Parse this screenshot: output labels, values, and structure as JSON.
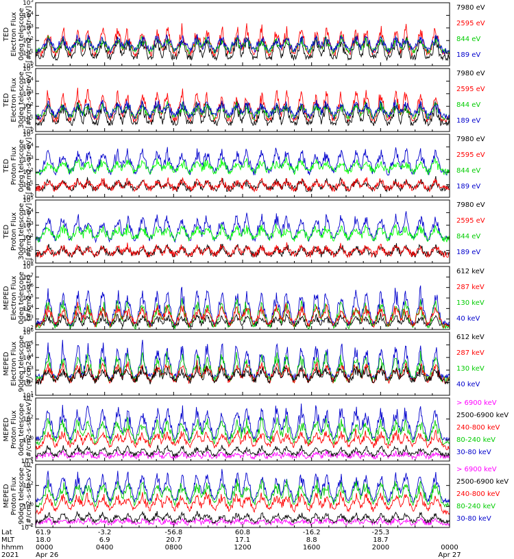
{
  "chart_data": [
    {
      "type": "line",
      "ylabel": [
        "TED",
        "Electron Flux",
        "0deg telescope",
        "[#/cm2-s-str-eV]"
      ],
      "yscale": "log",
      "ylim": [
        1,
        100000
      ],
      "ytick_labels": [
        "10^0",
        "10^1",
        "10^2",
        "10^3",
        "10^4",
        "10^5"
      ],
      "series": [
        {
          "name": "7980 eV",
          "color": "#000000",
          "base": 5,
          "peak": 300
        },
        {
          "name": "2595 eV",
          "color": "#ff0000",
          "base": 10,
          "peak": 2000
        },
        {
          "name": "844 eV",
          "color": "#00cc00",
          "base": 15,
          "peak": 200
        },
        {
          "name": "189 eV",
          "color": "#0000cc",
          "base": 15,
          "peak": 300
        }
      ]
    },
    {
      "type": "line",
      "ylabel": [
        "TED",
        "Electron Flux",
        "30deg telescope",
        "[#/cm2-s-str-eV]"
      ],
      "yscale": "log",
      "ylim": [
        1,
        100000
      ],
      "ytick_labels": [
        "10^0",
        "10^1",
        "10^2",
        "10^3",
        "10^4",
        "10^5"
      ],
      "series": [
        {
          "name": "7980 eV",
          "color": "#000000",
          "base": 5,
          "peak": 300
        },
        {
          "name": "2595 eV",
          "color": "#ff0000",
          "base": 10,
          "peak": 3000
        },
        {
          "name": "844 eV",
          "color": "#00cc00",
          "base": 15,
          "peak": 200
        },
        {
          "name": "189 eV",
          "color": "#0000cc",
          "base": 15,
          "peak": 300
        }
      ]
    },
    {
      "type": "line",
      "ylabel": [
        "TED",
        "Proton Flux",
        "0deg telescope",
        "[#/cm2-s-str-eV]"
      ],
      "yscale": "log",
      "ylim": [
        1,
        100000
      ],
      "ytick_labels": [
        "10^0",
        "10^1",
        "10^2",
        "10^3",
        "10^4",
        "10^5"
      ],
      "series": [
        {
          "name": "7980 eV",
          "color": "#000000",
          "base": 5,
          "peak": 30
        },
        {
          "name": "2595 eV",
          "color": "#ff0000",
          "base": 5,
          "peak": 30
        },
        {
          "name": "189 eV",
          "color": "#0000cc",
          "base": 100,
          "peak": 10000
        },
        {
          "name": "844 eV",
          "color": "#00ff00",
          "base": 100,
          "peak": 1000
        }
      ]
    },
    {
      "type": "line",
      "ylabel": [
        "TED",
        "Proton Flux",
        "30deg telescope",
        "[#/cm2-s-str-eV]"
      ],
      "yscale": "log",
      "ylim": [
        1,
        100000
      ],
      "ytick_labels": [
        "10^0",
        "10^1",
        "10^2",
        "10^3",
        "10^4",
        "10^5"
      ],
      "series": [
        {
          "name": "7980 eV",
          "color": "#000000",
          "base": 5,
          "peak": 30
        },
        {
          "name": "2595 eV",
          "color": "#ff0000",
          "base": 5,
          "peak": 30
        },
        {
          "name": "189 eV",
          "color": "#0000cc",
          "base": 80,
          "peak": 10000
        },
        {
          "name": "844 eV",
          "color": "#00ff00",
          "base": 80,
          "peak": 1000
        }
      ]
    },
    {
      "type": "line",
      "ylabel": [
        "MEPED",
        "Electron Flux",
        "0deg telescope",
        "[#/cm2-s-str]"
      ],
      "yscale": "log",
      "ylim": [
        100,
        100000000
      ],
      "ytick_labels": [
        "10^2",
        "10^3",
        "10^4",
        "10^5",
        "10^6",
        "10^7",
        "10^8"
      ],
      "series": [
        {
          "name": "612 keV",
          "color": "#000000",
          "base": 300,
          "peak": 3000
        },
        {
          "name": "40 keV",
          "color": "#0000cc",
          "base": 400,
          "peak": 2000000
        },
        {
          "name": "130 keV",
          "color": "#00cc00",
          "base": 200,
          "peak": 100000
        },
        {
          "name": "287 keV",
          "color": "#ff0000",
          "base": 250,
          "peak": 30000
        }
      ]
    },
    {
      "type": "line",
      "ylabel": [
        "MEPED",
        "Electron Flux",
        "90deg telescope",
        "[#/cm2-s-str]"
      ],
      "yscale": "log",
      "ylim": [
        10,
        1000000
      ],
      "ytick_labels": [
        "10^1",
        "10^2",
        "10^3",
        "10^4",
        "10^5",
        "10^6"
      ],
      "series": [
        {
          "name": "40 keV",
          "color": "#0000cc",
          "base": 300,
          "peak": 300000
        },
        {
          "name": "130 keV",
          "color": "#00cc00",
          "base": 200,
          "peak": 30000
        },
        {
          "name": "287 keV",
          "color": "#ff0000",
          "base": 150,
          "peak": 5000
        },
        {
          "name": "612 keV",
          "color": "#000000",
          "base": 120,
          "peak": 2000
        }
      ]
    },
    {
      "type": "line",
      "ylabel": [
        "MEPED",
        "Proton Flux",
        "0deg telescope",
        "[#/cm2-s-str-keV]"
      ],
      "yscale": "log",
      "ylim": [
        0.01,
        100000
      ],
      "ytick_labels": [
        "10^-2",
        "10^0",
        "10^2",
        "10^4"
      ],
      "series": [
        {
          "name": "> 6900 keV",
          "color": "#ff00ff",
          "base": 0.03,
          "peak": 0.1
        },
        {
          "name": "2500-6900 keV",
          "color": "#000000",
          "base": 0.05,
          "peak": 0.5
        },
        {
          "name": "30-80 keV",
          "color": "#0000cc",
          "base": 3,
          "peak": 30000
        },
        {
          "name": "80-240 keV",
          "color": "#00cc00",
          "base": 1,
          "peak": 1000
        },
        {
          "name": "240-800 keV",
          "color": "#ff0000",
          "base": 0.3,
          "peak": 30
        }
      ]
    },
    {
      "type": "line",
      "ylabel": [
        "MEPED",
        "Proton Flux",
        "90deg telescope",
        "[#/cm2-s-str-keV]"
      ],
      "yscale": "log",
      "ylim": [
        0.01,
        100000
      ],
      "ytick_labels": [
        "10^-2",
        "10^0",
        "10^2",
        "10^4"
      ],
      "series": [
        {
          "name": "> 6900 keV",
          "color": "#ff00ff",
          "base": 0.03,
          "peak": 0.1
        },
        {
          "name": "2500-6900 keV",
          "color": "#000000",
          "base": 0.05,
          "peak": 0.5
        },
        {
          "name": "30-80 keV",
          "color": "#0000cc",
          "base": 10,
          "peak": 30000
        },
        {
          "name": "80-240 keV",
          "color": "#00cc00",
          "base": 3,
          "peak": 3000
        },
        {
          "name": "240-800 keV",
          "color": "#ff0000",
          "base": 0.5,
          "peak": 100
        }
      ]
    }
  ],
  "x_axis": {
    "row_labels": [
      "Lat",
      "MLT",
      "hhmm",
      "2021"
    ],
    "columns": [
      {
        "values": [
          "61.9",
          "18.0",
          "0000",
          "Apr 26"
        ]
      },
      {
        "values": [
          "-3.2",
          "6.9",
          "0400",
          ""
        ]
      },
      {
        "values": [
          "-56.8",
          "20.7",
          "0800",
          ""
        ]
      },
      {
        "values": [
          "60.8",
          "17.1",
          "1200",
          ""
        ]
      },
      {
        "values": [
          "-16.2",
          "8.8",
          "1600",
          ""
        ]
      },
      {
        "values": [
          "-25.3",
          "18.7",
          "2000",
          ""
        ]
      },
      {
        "values": [
          "",
          "",
          "0000",
          "Apr 27"
        ]
      }
    ]
  }
}
